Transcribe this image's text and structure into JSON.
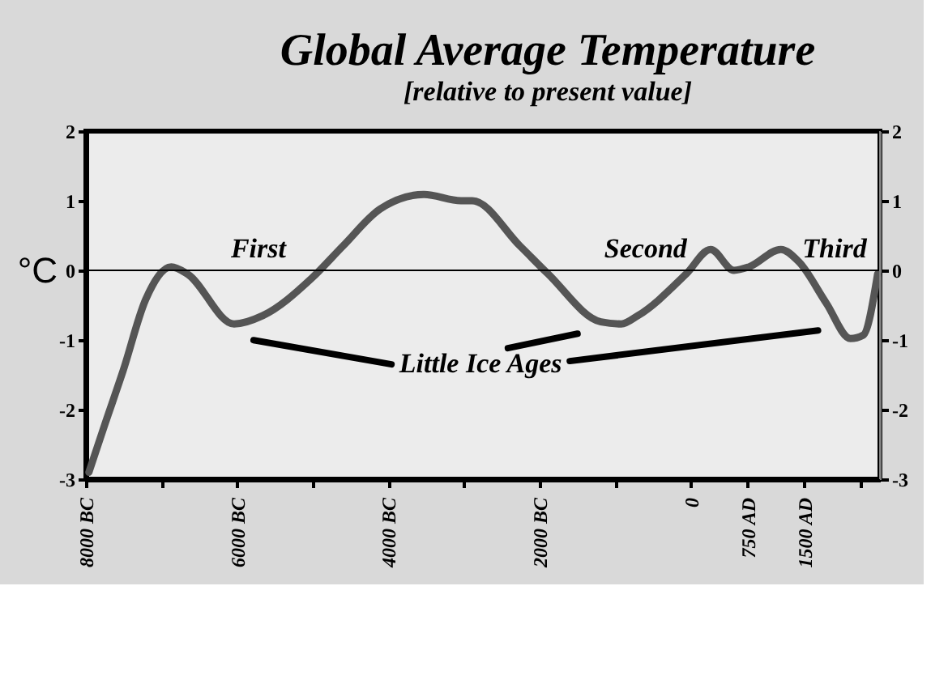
{
  "chart_data": {
    "type": "line",
    "title": "Global Average Temperature",
    "subtitle": "[relative to present value]",
    "ylabel": "°C",
    "x": [
      -7960,
      -7745,
      -7510,
      -7210,
      -6870,
      -6660,
      -6040,
      -5660,
      -5020,
      -4600,
      -4110,
      -3530,
      -3040,
      -2890,
      -2260,
      -1890,
      -1190,
      -920,
      -700,
      -60,
      260,
      570,
      770,
      1190,
      1430,
      1790,
      2110,
      2280,
      2470
    ],
    "series": [
      {
        "color": "#555555",
        "values": [
          -2.9,
          -2.2,
          -1.45,
          -0.42,
          0.05,
          -0.05,
          -0.77,
          -0.65,
          -0.12,
          0.35,
          0.88,
          1.09,
          1.0,
          1.0,
          0.35,
          -0.05,
          -0.74,
          -0.77,
          -0.65,
          -0.05,
          0.3,
          0.0,
          0.05,
          0.3,
          0.12,
          -0.47,
          -0.98,
          -0.93,
          -0.05
        ]
      }
    ],
    "xlim": [
      -8000,
      2500
    ],
    "xticks": [
      {
        "value": -8000,
        "label": "8000 BC"
      },
      {
        "value": -7000,
        "label": null
      },
      {
        "value": -6000,
        "label": "6000 BC"
      },
      {
        "value": -5000,
        "label": null
      },
      {
        "value": -4000,
        "label": "4000 BC"
      },
      {
        "value": -3000,
        "label": null
      },
      {
        "value": -2000,
        "label": "2000 BC"
      },
      {
        "value": -1000,
        "label": null
      },
      {
        "value": 0,
        "label": "0"
      },
      {
        "value": 750,
        "label": "750 AD"
      },
      {
        "value": 1500,
        "label": "1500 AD"
      },
      {
        "value": 2250,
        "label": null
      }
    ],
    "ylim": [
      -3,
      2
    ],
    "yticks": [
      -3,
      -2,
      -1,
      0,
      1,
      2
    ],
    "y2lim": [
      -3,
      2
    ],
    "y2ticks": [
      -3,
      -2,
      -1,
      0,
      1,
      2
    ],
    "ref_lines": [
      {
        "axis": "y",
        "value": 0,
        "color": "#000000"
      }
    ],
    "annotations": [
      "First",
      "Second",
      "Third",
      "Little Ice Ages"
    ],
    "grid": false,
    "marker": "none",
    "line_style": "solid"
  }
}
